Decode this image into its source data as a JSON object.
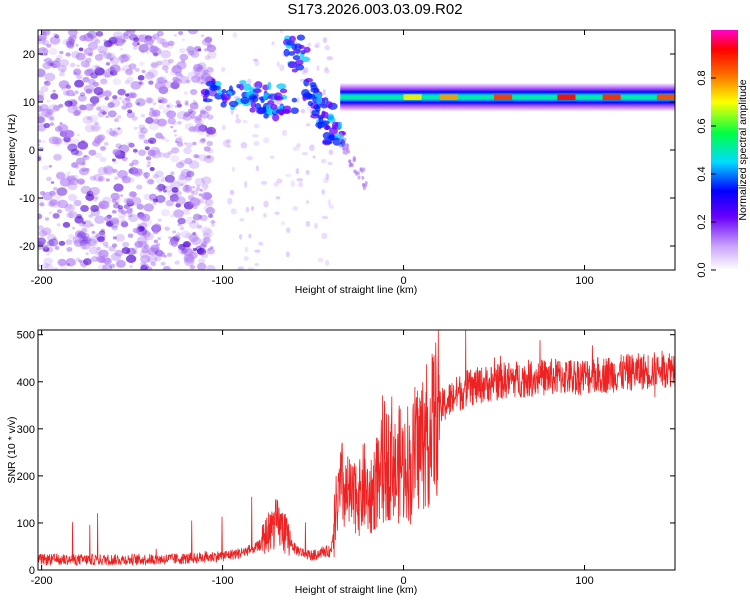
{
  "title": "S173.2026.003.03.09.R02",
  "chart_data": [
    {
      "type": "heatmap",
      "name": "spectrogram",
      "xlabel": "Height of straight line (km)",
      "ylabel": "Frequency (Hz)",
      "xlim": [
        -202,
        150
      ],
      "ylim": [
        -25,
        25
      ],
      "xticks": [
        -200,
        -100,
        0,
        100
      ],
      "xtick_labels": [
        "-200",
        "-100",
        "0",
        "100"
      ],
      "yticks": [
        -20,
        -10,
        0,
        10,
        20
      ],
      "ytick_labels": [
        "-20",
        "-10",
        "0",
        "10",
        "20"
      ],
      "grid": false,
      "description_values": {
        "band_center_hz": 11,
        "band_start_km": -35,
        "noise_region_km": [
          -202,
          -100
        ]
      },
      "colorbar": {
        "label": "Normalized spectral amplitude",
        "range": [
          0.0,
          1.0
        ],
        "ticks": [
          0.0,
          0.2,
          0.4,
          0.6,
          0.8
        ],
        "tick_labels": [
          "0.0",
          "0.2",
          "0.4",
          "0.6",
          "0.8"
        ],
        "colormap": [
          "#ffffff",
          "#8800ff",
          "#0000ff",
          "#00ccff",
          "#00ff44",
          "#ffee00",
          "#ff6600",
          "#ff0000",
          "#ff00ff"
        ]
      }
    },
    {
      "type": "line",
      "name": "snr",
      "xlabel": "Height of straight line (km)",
      "ylabel": "SNR (10 * v/v)",
      "xlim": [
        -202,
        150
      ],
      "ylim": [
        0,
        510
      ],
      "xticks": [
        -200,
        -100,
        0,
        100
      ],
      "xtick_labels": [
        "-200",
        "-100",
        "0",
        "100"
      ],
      "yticks": [
        0,
        100,
        200,
        300,
        400,
        500
      ],
      "ytick_labels": [
        "0",
        "100",
        "200",
        "300",
        "400",
        "500"
      ],
      "line_color": "#ee2222",
      "x": [
        -202,
        -150,
        -120,
        -100,
        -90,
        -80,
        -75,
        -70,
        -65,
        -60,
        -55,
        -50,
        -45,
        -40,
        -38,
        -36,
        -34,
        -32,
        -30,
        -28,
        -26,
        -24,
        -22,
        -20,
        -18,
        -16,
        -14,
        -12,
        -10,
        -8,
        -6,
        -4,
        -2,
        0,
        2,
        4,
        6,
        8,
        10,
        12,
        14,
        16,
        18,
        20,
        22,
        25,
        30,
        35,
        40,
        50,
        60,
        80,
        100,
        120,
        140,
        150
      ],
      "y": [
        22,
        22,
        24,
        30,
        36,
        50,
        80,
        100,
        75,
        45,
        35,
        30,
        38,
        40,
        120,
        150,
        180,
        155,
        160,
        140,
        175,
        150,
        180,
        160,
        150,
        180,
        200,
        210,
        220,
        230,
        250,
        190,
        235,
        215,
        240,
        200,
        255,
        260,
        275,
        280,
        290,
        310,
        325,
        340,
        350,
        360,
        375,
        385,
        390,
        400,
        405,
        410,
        412,
        418,
        425,
        430
      ],
      "grid": false
    }
  ]
}
